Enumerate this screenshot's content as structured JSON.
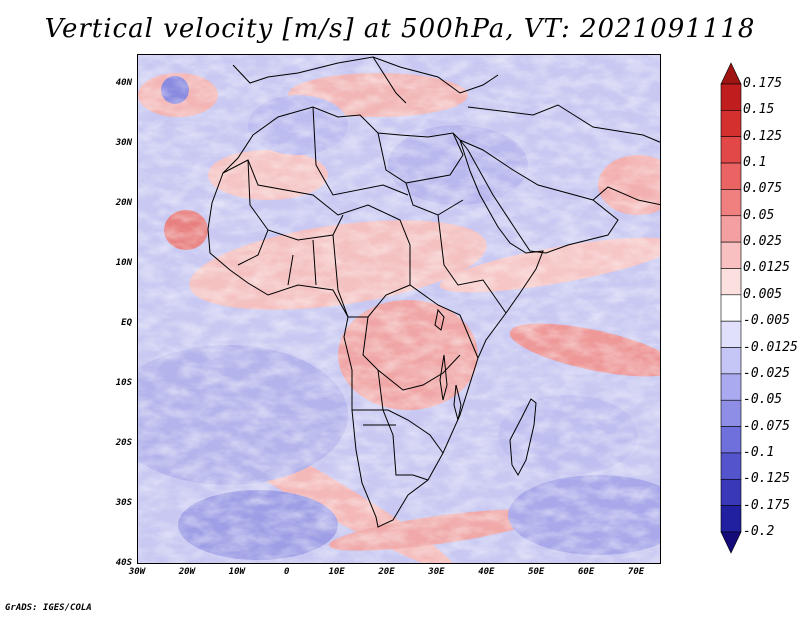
{
  "title": "Vertical velocity [m/s] at 500hPa, VT: 2021091118",
  "footer": "GrADS: IGES/COLA",
  "map": {
    "lon_range": [
      -30,
      75
    ],
    "lat_range": [
      -40,
      45
    ],
    "lat_ticks": [
      {
        "value": 40,
        "label": "40N"
      },
      {
        "value": 30,
        "label": "30N"
      },
      {
        "value": 20,
        "label": "20N"
      },
      {
        "value": 10,
        "label": "10N"
      },
      {
        "value": 0,
        "label": "EQ"
      },
      {
        "value": -10,
        "label": "10S"
      },
      {
        "value": -20,
        "label": "20S"
      },
      {
        "value": -30,
        "label": "30S"
      },
      {
        "value": -40,
        "label": "40S"
      }
    ],
    "lon_ticks": [
      {
        "value": -30,
        "label": "30W"
      },
      {
        "value": -20,
        "label": "20W"
      },
      {
        "value": -10,
        "label": "10W"
      },
      {
        "value": 0,
        "label": "0"
      },
      {
        "value": 10,
        "label": "10E"
      },
      {
        "value": 20,
        "label": "20E"
      },
      {
        "value": 30,
        "label": "30E"
      },
      {
        "value": 40,
        "label": "40E"
      },
      {
        "value": 50,
        "label": "50E"
      },
      {
        "value": 60,
        "label": "60E"
      },
      {
        "value": 70,
        "label": "70E"
      }
    ]
  },
  "colorbar": {
    "levels": [
      "0.175",
      "0.15",
      "0.125",
      "0.1",
      "0.075",
      "0.05",
      "0.025",
      "0.0125",
      "0.005",
      "-0.005",
      "-0.0125",
      "-0.025",
      "-0.05",
      "-0.075",
      "-0.1",
      "-0.125",
      "-0.175",
      "-0.2"
    ],
    "colors": [
      "#a01414",
      "#c01e1e",
      "#d43030",
      "#e24848",
      "#ea6464",
      "#f08080",
      "#f4a0a0",
      "#f8c0c0",
      "#fce0e0",
      "#ffffff",
      "#e0e0fc",
      "#c6c6f6",
      "#aaaaf0",
      "#8e8ee6",
      "#7070dc",
      "#5454cc",
      "#3838b8",
      "#2020a0",
      "#140a7a"
    ]
  }
}
